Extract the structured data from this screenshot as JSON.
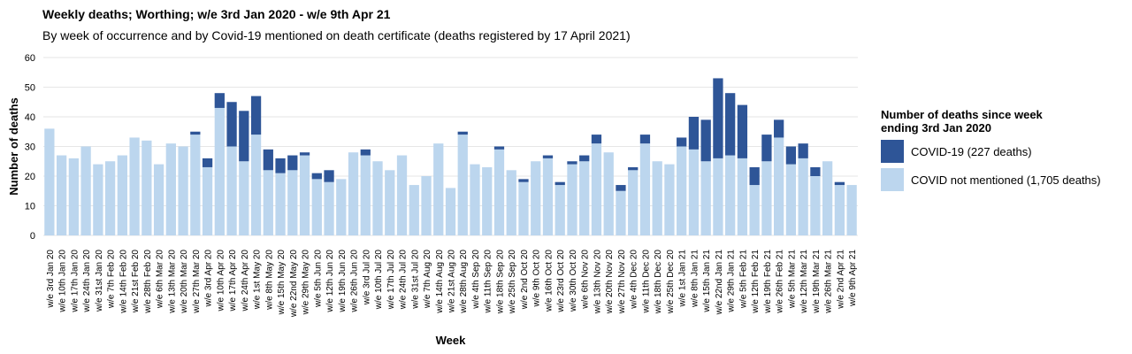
{
  "header": {
    "title": "Weekly deaths; Worthing; w/e 3rd Jan 2020 - w/e 9th Apr 21",
    "subtitle": "By week of occurrence and by Covid-19 mentioned on death certificate (deaths registered by 17 April 2021)"
  },
  "legend": {
    "title": "Number of deaths since week ending 3rd Jan 2020",
    "items": [
      "COVID-19 (227 deaths)",
      "COVID not mentioned (1,705 deaths)"
    ]
  },
  "colors": {
    "covid": "#2e5597",
    "not_covid": "#bcd6ee",
    "grid": "#e6e6e6"
  },
  "chart_data": {
    "type": "bar",
    "stacked": true,
    "xlabel": "Week",
    "ylabel": "Number of deaths",
    "ylim": [
      0,
      60
    ],
    "yticks": [
      0,
      10,
      20,
      30,
      40,
      50,
      60
    ],
    "grid": true,
    "legend_position": "right",
    "categories": [
      "w/e 3rd Jan 20",
      "w/e 10th Jan 20",
      "w/e 17th Jan 20",
      "w/e 24th Jan 20",
      "w/e 31st Jan 20",
      "w/e 7th Feb 20",
      "w/e 14th Feb 20",
      "w/e 21st Feb 20",
      "w/e 28th Feb 20",
      "w/e 6th Mar 20",
      "w/e 13th Mar 20",
      "w/e 20th Mar 20",
      "w/e 27th Mar 20",
      "w/e 3rd Apr 20",
      "w/e 10th Apr 20",
      "w/e 17th Apr 20",
      "w/e 24th Apr 20",
      "w/e 1st May 20",
      "w/e 8th May 20",
      "w/e 15th May 20",
      "w/e 22nd May 20",
      "w/e 29th May 20",
      "w/e 5th Jun 20",
      "w/e 12th Jun 20",
      "w/e 19th Jun 20",
      "w/e 26th Jun 20",
      "w/e 3rd Jul 20",
      "w/e 10th Jul 20",
      "w/e 17th Jul 20",
      "w/e 24th Jul 20",
      "w/e 31st Jul 20",
      "w/e 7th Aug 20",
      "w/e 14th Aug 20",
      "w/e 21st Aug 20",
      "w/e 28th Aug 20",
      "w/e 4th Sep 20",
      "w/e 11th Sep 20",
      "w/e 18th Sep 20",
      "w/e 25th Sep 20",
      "w/e 2nd Oct 20",
      "w/e 9th Oct 20",
      "w/e 16th Oct 20",
      "w/e 23rd Oct 20",
      "w/e 30th Oct 20",
      "w/e 6th Nov 20",
      "w/e 13th Nov 20",
      "w/e 20th Nov 20",
      "w/e 27th Nov 20",
      "w/e 4th Dec 20",
      "w/e 11th Dec 20",
      "w/e 18th Dec 20",
      "w/e 25th Dec 20",
      "w/e 1st Jan 21",
      "w/e 8th Jan 21",
      "w/e 15th Jan 21",
      "w/e 22nd Jan 21",
      "w/e 29th Jan 21",
      "w/e 5th Feb 21",
      "w/e 12th Feb 21",
      "w/e 19th Feb 21",
      "w/e 26th Feb 21",
      "w/e 5th Mar 21",
      "w/e 12th Mar 21",
      "w/e 19th Mar 21",
      "w/e 26th Mar 21",
      "w/e 2nd Apr 21",
      "w/e 9th Apr 21"
    ],
    "series": [
      {
        "name": "COVID not mentioned (1,705 deaths)",
        "values": [
          36,
          27,
          26,
          30,
          24,
          25,
          27,
          33,
          32,
          24,
          31,
          30,
          34,
          23,
          43,
          30,
          25,
          34,
          22,
          21,
          22,
          27,
          19,
          18,
          19,
          28,
          27,
          25,
          22,
          27,
          17,
          20,
          31,
          16,
          34,
          24,
          23,
          29,
          22,
          18,
          25,
          26,
          17,
          24,
          25,
          31,
          28,
          15,
          22,
          31,
          25,
          24,
          30,
          29,
          25,
          26,
          27,
          26,
          17,
          25,
          33,
          24,
          26,
          20,
          25,
          17,
          17
        ]
      },
      {
        "name": "COVID-19 (227 deaths)",
        "values": [
          0,
          0,
          0,
          0,
          0,
          0,
          0,
          0,
          0,
          0,
          0,
          0,
          1,
          3,
          5,
          15,
          17,
          13,
          7,
          5,
          5,
          1,
          2,
          4,
          0,
          0,
          2,
          0,
          0,
          0,
          0,
          0,
          0,
          0,
          1,
          0,
          0,
          1,
          0,
          1,
          0,
          1,
          1,
          1,
          2,
          3,
          0,
          2,
          1,
          3,
          0,
          0,
          3,
          11,
          14,
          27,
          21,
          18,
          6,
          9,
          6,
          6,
          5,
          3,
          0,
          1,
          0
        ]
      }
    ]
  }
}
